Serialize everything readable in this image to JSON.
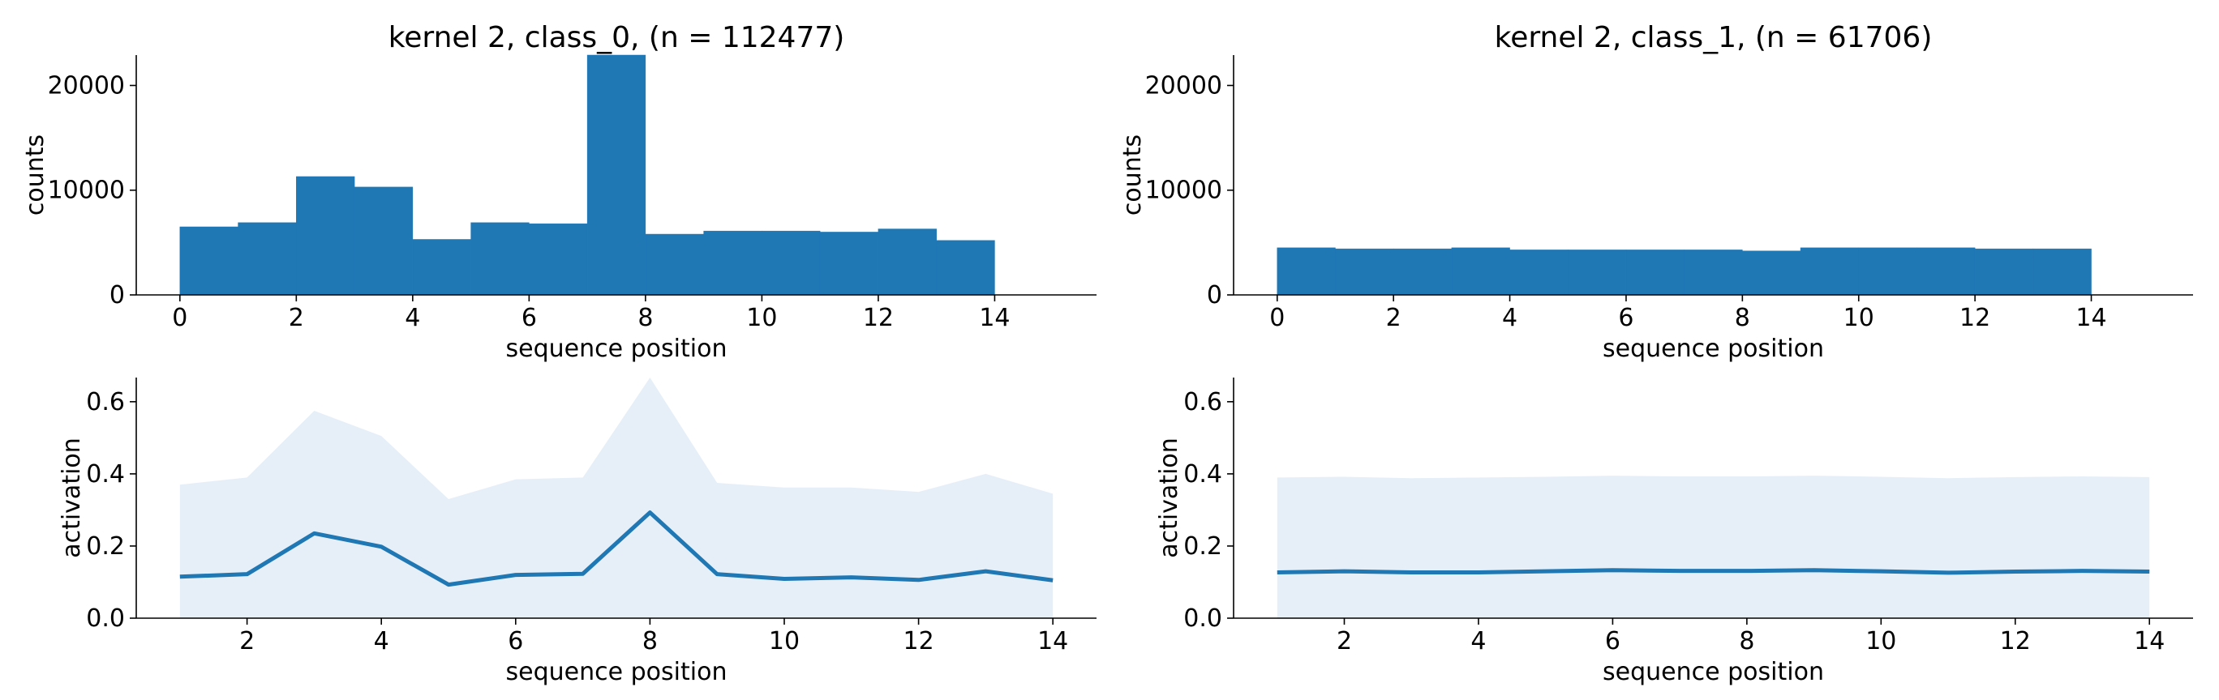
{
  "colors": {
    "bar": "#1f77b4",
    "line": "#1f77b4",
    "band": "#e6eff8"
  },
  "chart_data": [
    {
      "type": "bar",
      "title": "kernel 2, class_0, (n = 112477)",
      "xlabel": "sequence position",
      "ylabel": "counts",
      "bin_edges": [
        0,
        1,
        2,
        3,
        4,
        5,
        6,
        7,
        8,
        9,
        10,
        11,
        12,
        13,
        14
      ],
      "values": [
        6500,
        6900,
        11300,
        10300,
        5300,
        6900,
        6800,
        22900,
        5800,
        6100,
        6100,
        6000,
        6300,
        5200
      ],
      "xlim": [
        -0.75,
        15.75
      ],
      "ylim": [
        0,
        22900
      ],
      "xticks": [
        "0",
        "2",
        "4",
        "6",
        "8",
        "10",
        "12",
        "14"
      ],
      "yticks": [
        "0",
        "10000",
        "20000"
      ]
    },
    {
      "type": "bar",
      "title": "kernel 2, class_1, (n = 61706)",
      "xlabel": "sequence position",
      "ylabel": "counts",
      "bin_edges": [
        0,
        1,
        2,
        3,
        4,
        5,
        6,
        7,
        8,
        9,
        10,
        11,
        12,
        13,
        14
      ],
      "values": [
        4500,
        4400,
        4400,
        4500,
        4300,
        4300,
        4300,
        4300,
        4200,
        4500,
        4500,
        4500,
        4400,
        4400
      ],
      "xlim": [
        -0.75,
        15.75
      ],
      "ylim": [
        0,
        22900
      ],
      "xticks": [
        "0",
        "2",
        "4",
        "6",
        "8",
        "10",
        "12",
        "14"
      ],
      "yticks": [
        "0",
        "10000",
        "20000"
      ]
    },
    {
      "type": "area",
      "xlabel": "sequence position",
      "ylabel": "activation",
      "x": [
        1,
        2,
        3,
        4,
        5,
        6,
        7,
        8,
        9,
        10,
        11,
        12,
        13,
        14
      ],
      "mean": [
        0.115,
        0.122,
        0.235,
        0.198,
        0.093,
        0.12,
        0.123,
        0.293,
        0.122,
        0.109,
        0.113,
        0.106,
        0.13,
        0.105
      ],
      "upper": [
        0.37,
        0.39,
        0.575,
        0.505,
        0.33,
        0.385,
        0.39,
        0.667,
        0.375,
        0.362,
        0.362,
        0.35,
        0.4,
        0.345
      ],
      "lower": [
        0,
        0,
        0,
        0,
        0,
        0,
        0,
        0,
        0,
        0,
        0,
        0,
        0,
        0
      ],
      "xlim": [
        0.35,
        14.65
      ],
      "ylim": [
        0,
        0.667
      ],
      "xticks": [
        "2",
        "4",
        "6",
        "8",
        "10",
        "12",
        "14"
      ],
      "yticks": [
        "0.0",
        "0.2",
        "0.4",
        "0.6"
      ]
    },
    {
      "type": "area",
      "xlabel": "sequence position",
      "ylabel": "activation",
      "x": [
        1,
        2,
        3,
        4,
        5,
        6,
        7,
        8,
        9,
        10,
        11,
        12,
        13,
        14
      ],
      "mean": [
        0.127,
        0.13,
        0.127,
        0.127,
        0.13,
        0.133,
        0.131,
        0.131,
        0.133,
        0.13,
        0.126,
        0.129,
        0.131,
        0.129
      ],
      "upper": [
        0.39,
        0.392,
        0.388,
        0.39,
        0.392,
        0.395,
        0.393,
        0.393,
        0.395,
        0.392,
        0.388,
        0.391,
        0.393,
        0.391
      ],
      "lower": [
        0,
        0,
        0,
        0,
        0,
        0,
        0,
        0,
        0,
        0,
        0,
        0,
        0,
        0
      ],
      "xlim": [
        0.35,
        14.65
      ],
      "ylim": [
        0,
        0.667
      ],
      "xticks": [
        "2",
        "4",
        "6",
        "8",
        "10",
        "12",
        "14"
      ],
      "yticks": [
        "0.0",
        "0.2",
        "0.4",
        "0.6"
      ]
    }
  ]
}
